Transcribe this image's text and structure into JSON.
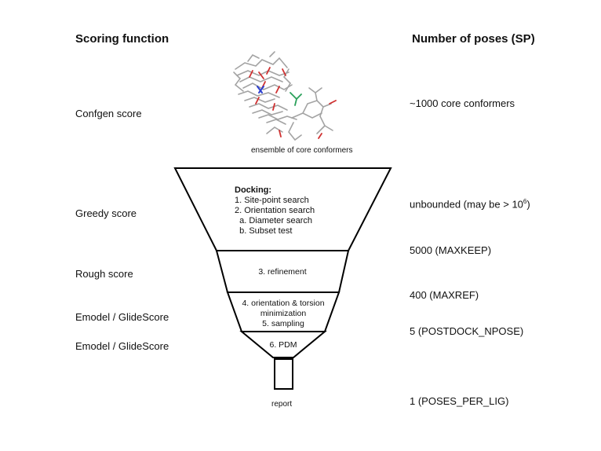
{
  "headers": {
    "left": "Scoring function",
    "right": "Number of poses (SP)"
  },
  "scores": {
    "confgen": "Confgen score",
    "greedy": "Greedy score",
    "rough": "Rough score",
    "emodel1": "Emodel / GlideScore",
    "emodel2": "Emodel / GlideScore"
  },
  "poses": {
    "confgen": "~1000 core conformers",
    "greedy_prefix": "unbounded (may be > 10",
    "greedy_sup": "6",
    "greedy_suffix": ")",
    "maxkeep": "5000 (MAXKEEP)",
    "maxref": "400 (MAXREF)",
    "postdock": "5 (POSTDOCK_NPOSE)",
    "poses_per_lig": "1 (POSES_PER_LIG)"
  },
  "molecule_caption": "ensemble of core conformers",
  "funnel": {
    "docking_title": "Docking:",
    "docking_steps": [
      "1. Site-point search",
      "2. Orientation search",
      "  a. Diameter search",
      "  b. Subset test"
    ],
    "refinement": "3. refinement",
    "minimization_line1": "4. orientation & torsion",
    "minimization_line2": "minimization",
    "sampling": "5. sampling",
    "pdm": "6. PDM",
    "report": "report"
  },
  "colors": {
    "carbon": "#9a9a9a",
    "oxygen": "#d03030",
    "nitrogen": "#2c3fd0",
    "fluorine": "#2aa05a"
  }
}
